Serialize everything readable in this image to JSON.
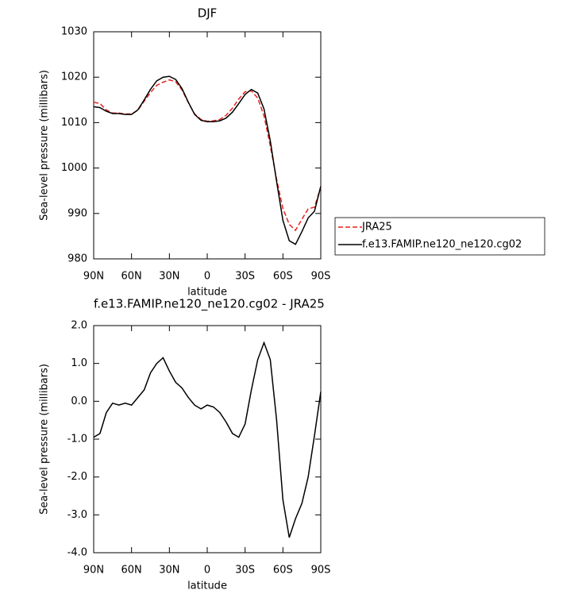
{
  "chart_data": [
    {
      "type": "line",
      "title": "DJF",
      "xlabel": "latitude",
      "ylabel": "Sea-level pressure (millibars)",
      "x": [
        90,
        85,
        80,
        75,
        70,
        65,
        60,
        55,
        50,
        45,
        40,
        35,
        30,
        25,
        20,
        15,
        10,
        5,
        0,
        -5,
        -10,
        -15,
        -20,
        -25,
        -30,
        -35,
        -40,
        -45,
        -50,
        -55,
        -60,
        -65,
        -70,
        -75,
        -80,
        -85,
        -90
      ],
      "series": [
        {
          "name": "JRA25",
          "color": "#e8201c",
          "line_style": "dashed",
          "values": [
            1014.5,
            1014.2,
            1012.8,
            1012.1,
            1012.1,
            1011.9,
            1011.9,
            1012.7,
            1014.7,
            1016.6,
            1018.2,
            1018.9,
            1019.4,
            1019.0,
            1017.2,
            1014.4,
            1011.9,
            1010.7,
            1010.3,
            1010.4,
            1010.7,
            1011.6,
            1013.2,
            1015.2,
            1016.8,
            1017.0,
            1015.4,
            1011.5,
            1004.9,
            997.5,
            991.1,
            987.6,
            986.3,
            988.7,
            991.0,
            991.4,
            995.8
          ]
        },
        {
          "name": "f.e13.FAMIP.ne120_ne120.cg02",
          "color": "#000000",
          "line_style": "solid",
          "values": [
            1013.5,
            1013.3,
            1012.5,
            1012.0,
            1012.0,
            1011.8,
            1011.8,
            1012.8,
            1015.0,
            1017.3,
            1019.2,
            1020.0,
            1020.2,
            1019.5,
            1017.5,
            1014.5,
            1011.8,
            1010.5,
            1010.2,
            1010.2,
            1010.4,
            1011.0,
            1012.3,
            1014.2,
            1016.2,
            1017.3,
            1016.5,
            1013.0,
            1006.0,
            997.0,
            988.5,
            984.0,
            983.2,
            986.0,
            989.0,
            990.5,
            996.0
          ]
        }
      ],
      "xlim": [
        90,
        -90
      ],
      "xticks": [
        {
          "value": 90,
          "label": "90N"
        },
        {
          "value": 60,
          "label": "60N"
        },
        {
          "value": 30,
          "label": "30N"
        },
        0,
        {
          "value": -30,
          "label": "30S"
        },
        {
          "value": -60,
          "label": "60S"
        },
        {
          "value": -90,
          "label": "90S"
        }
      ],
      "ylim": [
        980,
        1030
      ],
      "yticks": [
        980,
        990,
        1000,
        1010,
        1020,
        1030
      ],
      "legend": "outside-right"
    },
    {
      "type": "line",
      "title": "f.e13.FAMIP.ne120_ne120.cg02 - JRA25",
      "xlabel": "latitude",
      "ylabel": "Sea-level pressure (millibars)",
      "x": [
        90,
        85,
        80,
        75,
        70,
        65,
        60,
        55,
        50,
        45,
        40,
        35,
        30,
        25,
        20,
        15,
        10,
        5,
        0,
        -5,
        -10,
        -15,
        -20,
        -25,
        -30,
        -35,
        -40,
        -45,
        -50,
        -55,
        -60,
        -65,
        -70,
        -75,
        -80,
        -85,
        -90
      ],
      "color": "#000000",
      "values": [
        -0.95,
        -0.85,
        -0.3,
        -0.05,
        -0.1,
        -0.05,
        -0.1,
        0.1,
        0.3,
        0.75,
        1.0,
        1.15,
        0.8,
        0.5,
        0.35,
        0.1,
        -0.1,
        -0.2,
        -0.1,
        -0.15,
        -0.3,
        -0.55,
        -0.85,
        -0.95,
        -0.6,
        0.3,
        1.1,
        1.55,
        1.1,
        -0.5,
        -2.6,
        -3.6,
        -3.1,
        -2.7,
        -2.0,
        -0.9,
        0.25
      ],
      "xlim": [
        90,
        -90
      ],
      "xticks": [
        {
          "value": 90,
          "label": "90N"
        },
        {
          "value": 60,
          "label": "60N"
        },
        {
          "value": 30,
          "label": "30N"
        },
        0,
        {
          "value": -30,
          "label": "30S"
        },
        {
          "value": -60,
          "label": "60S"
        },
        {
          "value": -90,
          "label": "90S"
        }
      ],
      "ylim": [
        -4,
        2
      ],
      "yticks": [
        {
          "value": -4,
          "label": "-4.0"
        },
        {
          "value": -3,
          "label": "-3.0"
        },
        {
          "value": -2,
          "label": "-2.0"
        },
        {
          "value": -1,
          "label": "-1.0"
        },
        {
          "value": 0,
          "label": "0.0"
        },
        {
          "value": 1,
          "label": "1.0"
        },
        {
          "value": 2,
          "label": "2.0"
        }
      ]
    }
  ]
}
